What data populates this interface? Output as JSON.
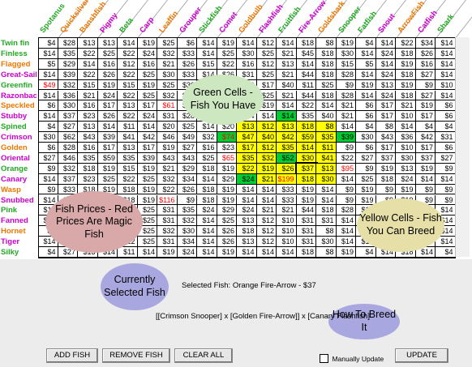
{
  "columns": [
    {
      "name": "Spotanus",
      "color": "#22aa22"
    },
    {
      "name": "Quicksilver",
      "color": "#ee7700"
    },
    {
      "name": "Banshfish",
      "color": "#ee7700"
    },
    {
      "name": "Pigmy",
      "color": "#cc00cc"
    },
    {
      "name": "Beta",
      "color": "#22aa22"
    },
    {
      "name": "Carp",
      "color": "#cc00cc"
    },
    {
      "name": "Leaffin",
      "color": "#ee7700"
    },
    {
      "name": "Grouper",
      "color": "#cc00cc"
    },
    {
      "name": "Stickfish",
      "color": "#22aa22"
    },
    {
      "name": "Comet",
      "color": "#cc00cc"
    },
    {
      "name": "Goldbulb",
      "color": "#ee7700"
    },
    {
      "name": "Flashfish",
      "color": "#cc00cc"
    },
    {
      "name": "Fruitfish",
      "color": "#22aa22"
    },
    {
      "name": "Fire-Arrow",
      "color": "#cc00cc"
    },
    {
      "name": "Goldshark",
      "color": "#ee7700"
    },
    {
      "name": "Snooper",
      "color": "#22aa22"
    },
    {
      "name": "Fatfish",
      "color": "#22aa22"
    },
    {
      "name": "Snout",
      "color": "#cc00cc"
    },
    {
      "name": "ArrowFish",
      "color": "#ee7700"
    },
    {
      "name": "Catfish",
      "color": "#cc00cc"
    },
    {
      "name": "Shark",
      "color": "#22aa22"
    }
  ],
  "rows": [
    {
      "name": "Twin fin",
      "color": "#22aa22",
      "cells": [
        "$4",
        "$28",
        "$13",
        "$13",
        "$14",
        "$19",
        "$25",
        "$6",
        "$14",
        "$19",
        "$14",
        "$12",
        "$14",
        "$18",
        "$8",
        "$19",
        "$4",
        "$14",
        "$22",
        "$34",
        "$14"
      ]
    },
    {
      "name": "Finless",
      "color": "#22aa22",
      "cells": [
        "$14",
        "$35",
        "$22",
        "$25",
        "$22",
        "$24",
        "$32",
        "$33",
        "$14",
        "$25",
        "$30",
        "$25",
        "$21",
        "$45",
        "$18",
        "$30",
        "$14",
        "$24",
        "$18",
        "$26",
        "$14"
      ]
    },
    {
      "name": "Flagged",
      "color": "#ee7700",
      "cells": [
        "$5",
        "$29",
        "$14",
        "$16",
        "$12",
        "$16",
        "$21",
        "$26",
        "$15",
        "$22",
        "$16",
        "$12",
        "$13",
        "$14",
        "$18",
        "$15",
        "$5",
        "$14",
        "$19",
        "$16",
        "$14"
      ]
    },
    {
      "name": "Great-Sail",
      "color": "#cc00cc",
      "cells": [
        "$14",
        "$39",
        "$22",
        "$26",
        "$22",
        "$25",
        "$30",
        "$33",
        "$14",
        "$26",
        "$31",
        "$25",
        "$21",
        "$44",
        "$18",
        "$28",
        "$14",
        "$24",
        "$18",
        "$27",
        "$14"
      ]
    },
    {
      "name": "Greenfin",
      "color": "#22aa22",
      "cells": [
        "$49",
        "$32",
        "$15",
        "$19",
        "$15",
        "$19",
        "$25",
        "$30",
        "$14",
        "$26",
        "$19",
        "$17",
        "$40",
        "$11",
        "$25",
        "$9",
        "$19",
        "$13",
        "$19",
        "$9",
        "$10"
      ]
    },
    {
      "name": "Razonback",
      "color": "#cc00cc",
      "cells": [
        "$14",
        "$36",
        "$21",
        "$24",
        "$22",
        "$25",
        "$32",
        "$30",
        "$14",
        "$24",
        "$30",
        "$25",
        "$21",
        "$44",
        "$18",
        "$28",
        "$14",
        "$24",
        "$18",
        "$27",
        "$14"
      ]
    },
    {
      "name": "Speckled",
      "color": "#ee7700",
      "cells": [
        "$6",
        "$30",
        "$16",
        "$17",
        "$13",
        "$17",
        "$61",
        "$29",
        "$16",
        "$23",
        "$16",
        "$19",
        "$14",
        "$22",
        "$14",
        "$21",
        "$6",
        "$17",
        "$21",
        "$19",
        "$6"
      ]
    },
    {
      "name": "Stubby",
      "color": "#cc00cc",
      "cells": [
        "$14",
        "$37",
        "$23",
        "$26",
        "$22",
        "$24",
        "$31",
        "$28",
        "$14",
        "$23",
        "$14",
        "$14",
        "$14",
        "$35",
        "$40",
        "$21",
        "$6",
        "$17",
        "$10",
        "$17",
        "$6"
      ]
    },
    {
      "name": "Spined",
      "color": "#22aa22",
      "cells": [
        "$4",
        "$27",
        "$13",
        "$14",
        "$11",
        "$14",
        "$20",
        "$25",
        "$14",
        "$20",
        "$13",
        "$12",
        "$13",
        "$18",
        "$8",
        "$14",
        "$4",
        "$8",
        "$14",
        "$4",
        "$4"
      ]
    },
    {
      "name": "Crimson",
      "color": "#cc00cc",
      "cells": [
        "$30",
        "$62",
        "$43",
        "$39",
        "$41",
        "$42",
        "$46",
        "$49",
        "$32",
        "$74",
        "$47",
        "$40",
        "$42",
        "$59",
        "$35",
        "$39",
        "$30",
        "$43",
        "$36",
        "$42",
        "$31"
      ]
    },
    {
      "name": "Golden",
      "color": "#ee7700",
      "cells": [
        "$6",
        "$28",
        "$16",
        "$17",
        "$13",
        "$17",
        "$19",
        "$27",
        "$16",
        "$23",
        "$17",
        "$12",
        "$35",
        "$14",
        "$11",
        "$9",
        "$6",
        "$17",
        "$10",
        "$17",
        "$6"
      ]
    },
    {
      "name": "Oriental",
      "color": "#cc00cc",
      "cells": [
        "$27",
        "$46",
        "$35",
        "$59",
        "$35",
        "$39",
        "$43",
        "$43",
        "$25",
        "$65",
        "$35",
        "$32",
        "$52",
        "$30",
        "$41",
        "$22",
        "$27",
        "$37",
        "$30",
        "$37",
        "$27"
      ]
    },
    {
      "name": "Orange",
      "color": "#22aa22",
      "cells": [
        "$9",
        "$32",
        "$18",
        "$19",
        "$15",
        "$19",
        "$21",
        "$29",
        "$18",
        "$19",
        "$22",
        "$19",
        "$26",
        "$37",
        "$13",
        "$95",
        "$9",
        "$19",
        "$13",
        "$19",
        "$9"
      ]
    },
    {
      "name": "Canary",
      "color": "#cc00cc",
      "cells": [
        "$14",
        "$37",
        "$23",
        "$25",
        "$22",
        "$25",
        "$32",
        "$34",
        "$14",
        "$29",
        "$24",
        "$21",
        "$199",
        "$18",
        "$30",
        "$14",
        "$25",
        "$18",
        "$24",
        "$14",
        "$14"
      ]
    },
    {
      "name": "Wasp",
      "color": "#ee7700",
      "cells": [
        "$9",
        "$33",
        "$18",
        "$19",
        "$18",
        "$19",
        "$22",
        "$26",
        "$18",
        "$19",
        "$14",
        "$14",
        "$33",
        "$19",
        "$14",
        "$9",
        "$19",
        "$9",
        "$19",
        "$9",
        "$9"
      ]
    },
    {
      "name": "Snubbed",
      "color": "#cc00cc",
      "cells": [
        "$14",
        "$18",
        "$18",
        "$19",
        "$18",
        "$19",
        "$116",
        "$9",
        "$18",
        "$19",
        "$14",
        "$14",
        "$33",
        "$19",
        "$14",
        "$9",
        "$19",
        "$9",
        "$19",
        "$9",
        "$9"
      ]
    },
    {
      "name": "Pink",
      "color": "#22aa22",
      "cells": [
        "$14",
        "$37",
        "$23",
        "$25",
        "$22",
        "$25",
        "$31",
        "$35",
        "$24",
        "$29",
        "$24",
        "$21",
        "$21",
        "$44",
        "$18",
        "$28",
        "$14",
        "$24",
        "$18",
        "$27",
        "$14"
      ]
    },
    {
      "name": "Fanned",
      "color": "#cc00cc",
      "cells": [
        "$14",
        "$36",
        "$21",
        "$24",
        "$22",
        "$25",
        "$31",
        "$32",
        "$14",
        "$25",
        "$13",
        "$12",
        "$10",
        "$31",
        "$31",
        "$14",
        "$14",
        "$24",
        "$18",
        "$27",
        "$14"
      ]
    },
    {
      "name": "Hornet",
      "color": "#ee7700",
      "cells": [
        "$5",
        "$29",
        "$15",
        "$15",
        "$22",
        "$25",
        "$32",
        "$30",
        "$14",
        "$26",
        "$18",
        "$12",
        "$10",
        "$31",
        "$8",
        "$14",
        "$14",
        "$24",
        "$18",
        "$14",
        "$14"
      ]
    },
    {
      "name": "Tiger",
      "color": "#cc00cc",
      "cells": [
        "$14",
        "$37",
        "$22",
        "$25",
        "$22",
        "$25",
        "$31",
        "$34",
        "$14",
        "$26",
        "$13",
        "$12",
        "$10",
        "$31",
        "$30",
        "$14",
        "$14",
        "$24",
        "$18",
        "$25",
        "$14"
      ]
    },
    {
      "name": "Silky",
      "color": "#22aa22",
      "cells": [
        "$4",
        "$27",
        "$13",
        "$14",
        "$11",
        "$14",
        "$19",
        "$24",
        "$14",
        "$19",
        "$14",
        "$14",
        "$14",
        "$18",
        "$8",
        "$19",
        "$4",
        "$14",
        "$18",
        "$14",
        "$4"
      ]
    }
  ],
  "highlights": {
    "green": [
      [
        7,
        12
      ],
      [
        9,
        15
      ],
      [
        11,
        12
      ],
      [
        13,
        10
      ],
      [
        9,
        9
      ]
    ],
    "yellow": [
      [
        8,
        10
      ],
      [
        8,
        11
      ],
      [
        8,
        12
      ],
      [
        8,
        13
      ],
      [
        8,
        14
      ],
      [
        9,
        10
      ],
      [
        9,
        11
      ],
      [
        9,
        12
      ],
      [
        9,
        13
      ],
      [
        9,
        14
      ],
      [
        10,
        10
      ],
      [
        10,
        11
      ],
      [
        10,
        12
      ],
      [
        10,
        13
      ],
      [
        10,
        14
      ],
      [
        11,
        10
      ],
      [
        11,
        11
      ],
      [
        11,
        13
      ],
      [
        11,
        14
      ],
      [
        12,
        10
      ],
      [
        12,
        11
      ],
      [
        12,
        12
      ],
      [
        12,
        13
      ],
      [
        12,
        14
      ],
      [
        13,
        11
      ],
      [
        13,
        12
      ],
      [
        13,
        13
      ],
      [
        13,
        14
      ]
    ],
    "red": [
      [
        4,
        0
      ],
      [
        6,
        6
      ],
      [
        15,
        6
      ],
      [
        9,
        9
      ],
      [
        11,
        9
      ],
      [
        12,
        15
      ],
      [
        13,
        12
      ]
    ],
    "selected": [
      12,
      13
    ]
  },
  "bubbles": {
    "green_cells": "Green Cells - Fish You Have",
    "fish_prices": "Fish Prices - Red Prices Are Magic Fish",
    "yellow_cells": "Yellow Cells - Fish You Can Breed",
    "currently_selected": "Currently Selected Fish",
    "how_to_breed": "How To Breed It"
  },
  "selected_fish_text": "Selected Fish: Orange Fire-Arrow - $37",
  "breed_formula": "[[Crimson Snooper] x [Golden Fire-Arrow]] x [Canary Flashfish]",
  "buttons": {
    "add_fish": "ADD FISH",
    "remove_fish": "REMOVE FISH",
    "clear_all": "CLEAR ALL",
    "update": "UPDATE"
  },
  "manual_update_label": "Manually Update",
  "manual_update_checked": false,
  "colors": {
    "green_cell": "#00cc33",
    "yellow_cell": "#ffff00",
    "red_text": "#ff0000",
    "bubble_green": "#cde8c0",
    "bubble_pink": "#d9a8a8",
    "bubble_yellow": "#e6e0a8",
    "bubble_blue": "#a9a7e0"
  }
}
